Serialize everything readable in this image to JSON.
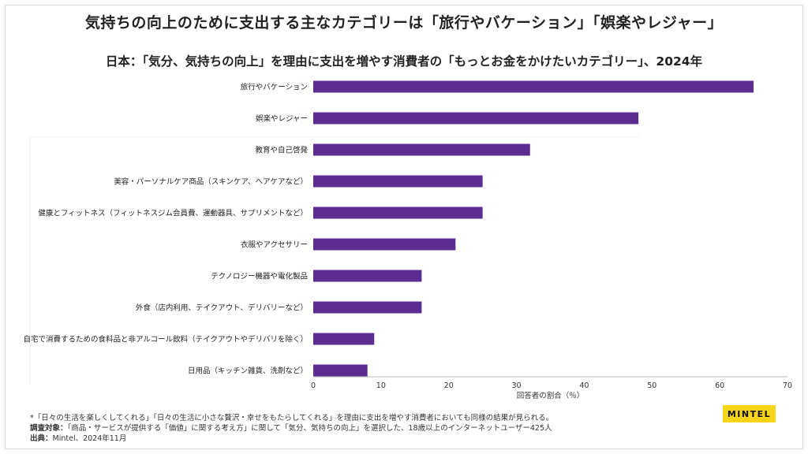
{
  "title": "気持ちの向上のために支出する主なカテゴリーは「旅行やバケーション」「娯楽やレジャー」",
  "chart_data": {
    "type": "bar",
    "orientation": "horizontal",
    "title": "日本：「気分、気持ちの向上」を理由に支出を増やす消費者の「もっとお金をかけたいカテゴリー」、2024年",
    "xlabel": "回答者の割合（％）",
    "ylabel": "",
    "xlim": [
      0,
      70
    ],
    "ticks": [
      0,
      10,
      20,
      30,
      40,
      50,
      60,
      70
    ],
    "grid": false,
    "bar_color": "#5c2d91",
    "categories": [
      "旅行やバケーション",
      "娯楽やレジャー",
      "教育や自己啓発",
      "美容・パーソナルケア商品（スキンケア、ヘアケアなど）",
      "健康とフィットネス（フィットネスジム会員費、運動器具、サプリメントなど）",
      "衣服やアクセサリー",
      "テクノロジー機器や電化製品",
      "外食（店内利用、テイクアウト、デリバリーなど）",
      "自宅で消費するための食料品と非アルコール飲料（テイクアウトやデリバリを除く）",
      "日用品（キッチン雑貨、洗剤など）"
    ],
    "values": [
      65,
      48,
      32,
      25,
      25,
      21,
      16,
      16,
      9,
      8
    ]
  },
  "footnotes": {
    "note": "*「日々の生活を楽しくしてくれる」「日々の生活に小さな贅沢・幸せをもたらしてくれる」を理由に支出を増やす消費者においても同様の結果が見られる。",
    "survey_label": "調査対象：",
    "survey_text": "「商品・サービスが提供する「価値」に関する考え方」に関して「気分、気持ちの向上」を選択した、18歳以上のインターネットユーザー425人",
    "source_label": "出典：",
    "source_text": "Mintel、2024年11月"
  },
  "logo_text": "MINTEL"
}
